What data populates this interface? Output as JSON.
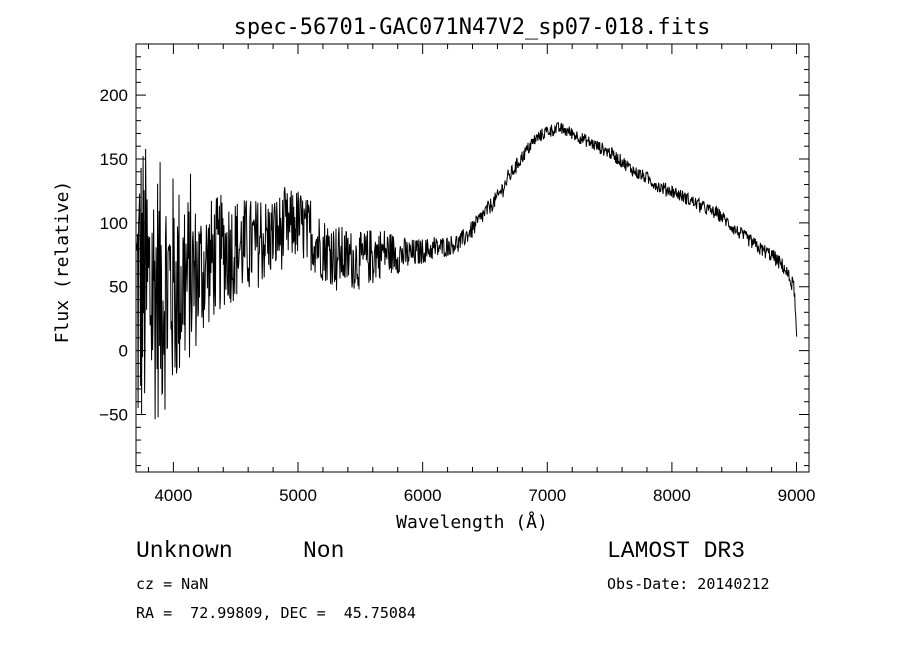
{
  "chart_data": {
    "type": "line",
    "title": "spec-56701-GAC071N47V2_sp07-018.fits",
    "xlabel": "Wavelength (Å)",
    "ylabel": "Flux (relative)",
    "xlim": [
      3700,
      9100
    ],
    "ylim": [
      -95,
      240
    ],
    "x_ticks": [
      4000,
      5000,
      6000,
      7000,
      8000,
      9000
    ],
    "y_ticks": [
      -50,
      0,
      50,
      100,
      150,
      200
    ],
    "x_tick_labels": [
      "4000",
      "5000",
      "6000",
      "7000",
      "8000",
      "9000"
    ],
    "y_tick_labels": [
      "−50",
      "0",
      "50",
      "100",
      "150",
      "200"
    ],
    "x_minor_step": 200,
    "y_minor_step": 10,
    "grid": false,
    "series": [
      {
        "name": "flux",
        "continuum": {
          "x": [
            3700,
            3750,
            3800,
            3900,
            4000,
            4100,
            4200,
            4300,
            4400,
            4500,
            4600,
            4700,
            4800,
            4900,
            5000,
            5100,
            5200,
            5300,
            5400,
            5500,
            5600,
            5700,
            5800,
            5900,
            6000,
            6100,
            6200,
            6300,
            6400,
            6500,
            6600,
            6700,
            6800,
            6900,
            7000,
            7100,
            7200,
            7300,
            7400,
            7500,
            7600,
            7700,
            7800,
            7900,
            8000,
            8100,
            8200,
            8300,
            8400,
            8500,
            8600,
            8700,
            8800,
            8900,
            8950,
            8980,
            9000,
            9010
          ],
          "y": [
            40,
            50,
            45,
            48,
            50,
            55,
            60,
            70,
            78,
            80,
            82,
            85,
            90,
            95,
            100,
            90,
            80,
            75,
            72,
            70,
            75,
            78,
            75,
            75,
            78,
            80,
            82,
            85,
            95,
            108,
            120,
            137,
            152,
            165,
            172,
            174,
            170,
            165,
            160,
            155,
            148,
            140,
            135,
            128,
            125,
            120,
            115,
            110,
            105,
            95,
            88,
            80,
            75,
            65,
            55,
            50,
            10,
            2
          ]
        },
        "noise": {
          "x": [
            3700,
            3800,
            4000,
            4200,
            4400,
            4600,
            4800,
            5000,
            5200,
            5400,
            5600,
            5800,
            6000,
            6200,
            6400,
            6600,
            7000,
            7500,
            8000,
            8500,
            8900,
            9010
          ],
          "amplitude": [
            140,
            110,
            90,
            55,
            45,
            38,
            32,
            28,
            26,
            24,
            22,
            15,
            10,
            8,
            7,
            6,
            5,
            5,
            5,
            5,
            6,
            6
          ]
        }
      }
    ]
  },
  "footer": {
    "object_class": "Unknown",
    "object_subclass": "Non",
    "survey": "LAMOST DR3",
    "redshift": "cz = NaN",
    "obs_date": "Obs-Date: 20140212",
    "coords": "RA =  72.99809, DEC =  45.75084"
  }
}
